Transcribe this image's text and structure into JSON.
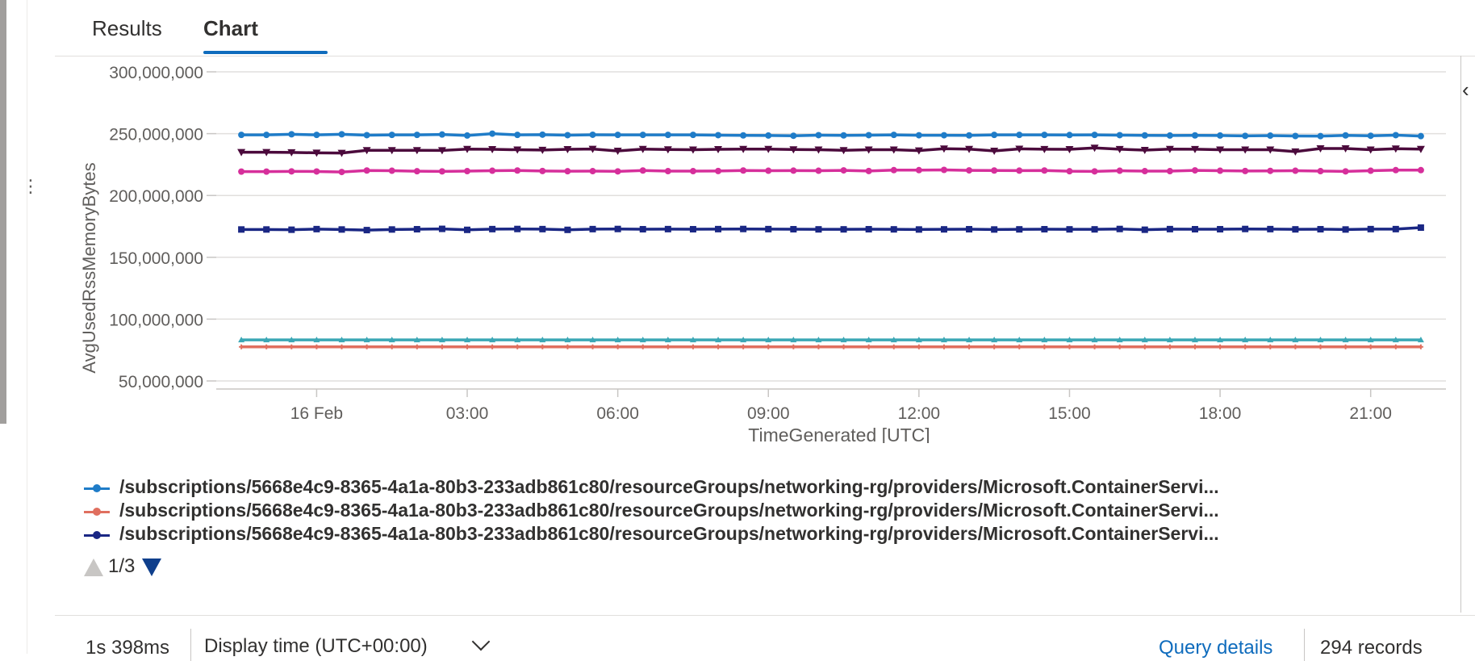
{
  "tabs": [
    {
      "label": "Results",
      "active": false
    },
    {
      "label": "Chart",
      "active": true
    }
  ],
  "colors": {
    "accent": "#0f6cbd"
  },
  "chart_data": {
    "type": "line",
    "xlabel": "TimeGenerated [UTC]",
    "ylabel": "AvgUsedRssMemoryBytes",
    "ylim": [
      50000000,
      300000000
    ],
    "yticks": [
      {
        "value": 300000000,
        "label": "300,000,000"
      },
      {
        "value": 250000000,
        "label": "250,000,000"
      },
      {
        "value": 200000000,
        "label": "200,000,000"
      },
      {
        "value": 150000000,
        "label": "150,000,000"
      },
      {
        "value": 100000000,
        "label": "100,000,000"
      },
      {
        "value": 50000000,
        "label": "50,000,000"
      }
    ],
    "xlim": [
      "2024-02-15T22:00:00Z",
      "2024-02-16T22:30:00Z"
    ],
    "xticks": [
      {
        "value": "2024-02-16T00:00:00Z",
        "label": "16 Feb"
      },
      {
        "value": "2024-02-16T03:00:00Z",
        "label": "03:00"
      },
      {
        "value": "2024-02-16T06:00:00Z",
        "label": "06:00"
      },
      {
        "value": "2024-02-16T09:00:00Z",
        "label": "09:00"
      },
      {
        "value": "2024-02-16T12:00:00Z",
        "label": "12:00"
      },
      {
        "value": "2024-02-16T15:00:00Z",
        "label": "15:00"
      },
      {
        "value": "2024-02-16T18:00:00Z",
        "label": "18:00"
      },
      {
        "value": "2024-02-16T21:00:00Z",
        "label": "21:00"
      }
    ],
    "grid": true,
    "x": [
      "2024-02-15T22:30:00Z",
      "2024-02-15T23:00:00Z",
      "2024-02-15T23:30:00Z",
      "2024-02-16T00:00:00Z",
      "2024-02-16T00:30:00Z",
      "2024-02-16T01:00:00Z",
      "2024-02-16T01:30:00Z",
      "2024-02-16T02:00:00Z",
      "2024-02-16T02:30:00Z",
      "2024-02-16T03:00:00Z",
      "2024-02-16T03:30:00Z",
      "2024-02-16T04:00:00Z",
      "2024-02-16T04:30:00Z",
      "2024-02-16T05:00:00Z",
      "2024-02-16T05:30:00Z",
      "2024-02-16T06:00:00Z",
      "2024-02-16T06:30:00Z",
      "2024-02-16T07:00:00Z",
      "2024-02-16T07:30:00Z",
      "2024-02-16T08:00:00Z",
      "2024-02-16T08:30:00Z",
      "2024-02-16T09:00:00Z",
      "2024-02-16T09:30:00Z",
      "2024-02-16T10:00:00Z",
      "2024-02-16T10:30:00Z",
      "2024-02-16T11:00:00Z",
      "2024-02-16T11:30:00Z",
      "2024-02-16T12:00:00Z",
      "2024-02-16T12:30:00Z",
      "2024-02-16T13:00:00Z",
      "2024-02-16T13:30:00Z",
      "2024-02-16T14:00:00Z",
      "2024-02-16T14:30:00Z",
      "2024-02-16T15:00:00Z",
      "2024-02-16T15:30:00Z",
      "2024-02-16T16:00:00Z",
      "2024-02-16T16:30:00Z",
      "2024-02-16T17:00:00Z",
      "2024-02-16T17:30:00Z",
      "2024-02-16T18:00:00Z",
      "2024-02-16T18:30:00Z",
      "2024-02-16T19:00:00Z",
      "2024-02-16T19:30:00Z",
      "2024-02-16T20:00:00Z",
      "2024-02-16T20:30:00Z",
      "2024-02-16T21:00:00Z",
      "2024-02-16T21:30:00Z",
      "2024-02-16T22:00:00Z"
    ],
    "series": [
      {
        "color": "#1f7cc8",
        "marker": "circle",
        "values": [
          249000000,
          249000000,
          249500000,
          249000000,
          249500000,
          248800000,
          249000000,
          249000000,
          249300000,
          248500000,
          250000000,
          249000000,
          249200000,
          248800000,
          249100000,
          249000000,
          249000000,
          249000000,
          249000000,
          248800000,
          248600000,
          248500000,
          248300000,
          248800000,
          248600000,
          248800000,
          249000000,
          248700000,
          248700000,
          248600000,
          249000000,
          249000000,
          249000000,
          248900000,
          249000000,
          248800000,
          248600000,
          248500000,
          248600000,
          248500000,
          248200000,
          248400000,
          248100000,
          248000000,
          248600000,
          248300000,
          248800000,
          248000000
        ]
      },
      {
        "color": "#4b0a3c",
        "marker": "triangle-down",
        "values": [
          235000000,
          235000000,
          234800000,
          234500000,
          234300000,
          236500000,
          236500000,
          236500000,
          236400000,
          237500000,
          237300000,
          237000000,
          236800000,
          237300000,
          237600000,
          236000000,
          237500000,
          237200000,
          237000000,
          237300000,
          237500000,
          237500000,
          237200000,
          237000000,
          236500000,
          237000000,
          237000000,
          236300000,
          237800000,
          237500000,
          236000000,
          237700000,
          237400000,
          237300000,
          238500000,
          237400000,
          236700000,
          237500000,
          237400000,
          237000000,
          237000000,
          237000000,
          235500000,
          238000000,
          238000000,
          237000000,
          237800000,
          237500000
        ]
      },
      {
        "color": "#d62f9b",
        "marker": "circle",
        "values": [
          219300000,
          219300000,
          219500000,
          219400000,
          219000000,
          220200000,
          220000000,
          219600000,
          219500000,
          219700000,
          220000000,
          220200000,
          219800000,
          219600000,
          219700000,
          219500000,
          220200000,
          219700000,
          219700000,
          219800000,
          220200000,
          220000000,
          220100000,
          220000000,
          220300000,
          219800000,
          220500000,
          220500000,
          220700000,
          220300000,
          220200000,
          220100000,
          220200000,
          219600000,
          219500000,
          220000000,
          219700000,
          219700000,
          220300000,
          220000000,
          219800000,
          219900000,
          220000000,
          219700000,
          219500000,
          220000000,
          220500000,
          220500000
        ]
      },
      {
        "color": "#1a2784",
        "marker": "square",
        "values": [
          172500000,
          172500000,
          172300000,
          172800000,
          172500000,
          172000000,
          172500000,
          172700000,
          173000000,
          172200000,
          172800000,
          172900000,
          172800000,
          172200000,
          172800000,
          172900000,
          172700000,
          172800000,
          172700000,
          172800000,
          172900000,
          172800000,
          172700000,
          172600000,
          172600000,
          172700000,
          172600000,
          172500000,
          172600000,
          172700000,
          172500000,
          172600000,
          172700000,
          172600000,
          172600000,
          172900000,
          172300000,
          172800000,
          172700000,
          172700000,
          172900000,
          172800000,
          172600000,
          172700000,
          172500000,
          172800000,
          172800000,
          174000000
        ]
      },
      {
        "color": "#3aa7b5",
        "marker": "triangle-up",
        "values": [
          83200000,
          83200000,
          83200000,
          83200000,
          83200000,
          83200000,
          83200000,
          83200000,
          83200000,
          83200000,
          83200000,
          83200000,
          83200000,
          83200000,
          83200000,
          83200000,
          83200000,
          83200000,
          83200000,
          83200000,
          83200000,
          83200000,
          83200000,
          83200000,
          83200000,
          83200000,
          83200000,
          83200000,
          83200000,
          83200000,
          83200000,
          83200000,
          83200000,
          83200000,
          83200000,
          83200000,
          83200000,
          83200000,
          83200000,
          83200000,
          83200000,
          83200000,
          83200000,
          83200000,
          83200000,
          83200000,
          83200000,
          83200000
        ]
      },
      {
        "color": "#e06f5f",
        "marker": "plus",
        "values": [
          77600000,
          77600000,
          77600000,
          77600000,
          77600000,
          77600000,
          77600000,
          77600000,
          77600000,
          77600000,
          77600000,
          77600000,
          77600000,
          77600000,
          77600000,
          77600000,
          77600000,
          77600000,
          77600000,
          77600000,
          77600000,
          77600000,
          77600000,
          77600000,
          77600000,
          77600000,
          77600000,
          77600000,
          77600000,
          77600000,
          77600000,
          77600000,
          77600000,
          77600000,
          77600000,
          77600000,
          77600000,
          77600000,
          77600000,
          77600000,
          77600000,
          77600000,
          77600000,
          77600000,
          77600000,
          77600000,
          77600000,
          77600000
        ]
      }
    ]
  },
  "legend": {
    "items": [
      {
        "label": "/subscriptions/5668e4c9-8365-4a1a-80b3-233adb861c80/resourceGroups/networking-rg/providers/Microsoft.ContainerServi...",
        "color": "#1f7cc8"
      },
      {
        "label": "/subscriptions/5668e4c9-8365-4a1a-80b3-233adb861c80/resourceGroups/networking-rg/providers/Microsoft.ContainerServi...",
        "color": "#e06f5f"
      },
      {
        "label": "/subscriptions/5668e4c9-8365-4a1a-80b3-233adb861c80/resourceGroups/networking-rg/providers/Microsoft.ContainerServi...",
        "color": "#1a2784"
      }
    ],
    "page": "1/3"
  },
  "status": {
    "elapsed": "1s 398ms",
    "display_time": "Display time (UTC+00:00)",
    "query_details": "Query details",
    "records": "294 records"
  }
}
